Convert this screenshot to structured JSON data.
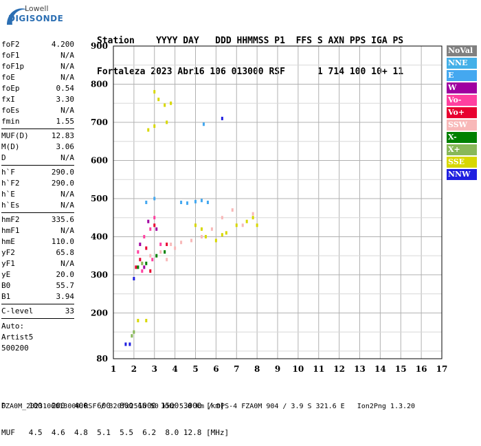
{
  "logo": {
    "top": "Lowell",
    "bottom": "DIGISONDE"
  },
  "header": {
    "line1": "Station    YYYY DAY   DDD HHMMSS P1  FFS S AXN PPS IGA PS",
    "line2": "Fortaleza 2023 Abr16 106 013000 RSF      1 714 100 10+ 11"
  },
  "params": {
    "group1": [
      {
        "k": "foF2",
        "v": "4.200"
      },
      {
        "k": "foF1",
        "v": "N/A"
      },
      {
        "k": "foF1p",
        "v": "N/A"
      },
      {
        "k": "foE",
        "v": "N/A"
      },
      {
        "k": "foEp",
        "v": "0.54"
      },
      {
        "k": "fxI",
        "v": "3.30"
      },
      {
        "k": "foEs",
        "v": "N/A"
      },
      {
        "k": "fmin",
        "v": "1.55"
      }
    ],
    "group2": [
      {
        "k": "MUF(D)",
        "v": "12.83"
      },
      {
        "k": "M(D)",
        "v": "3.06"
      },
      {
        "k": "D",
        "v": "N/A"
      }
    ],
    "group3": [
      {
        "k": "h`F",
        "v": "290.0"
      },
      {
        "k": "h`F2",
        "v": "290.0"
      },
      {
        "k": "h`E",
        "v": "N/A"
      },
      {
        "k": "h`Es",
        "v": "N/A"
      }
    ],
    "group4": [
      {
        "k": "hmF2",
        "v": "335.6"
      },
      {
        "k": "hmF1",
        "v": "N/A"
      },
      {
        "k": "hmE",
        "v": "110.0"
      },
      {
        "k": "yF2",
        "v": "65.8"
      },
      {
        "k": "yF1",
        "v": "N/A"
      },
      {
        "k": "yE",
        "v": "20.0"
      },
      {
        "k": "B0",
        "v": "55.7"
      },
      {
        "k": "B1",
        "v": "3.94"
      }
    ],
    "group5": [
      {
        "k": "C-level",
        "v": "33"
      }
    ],
    "auto": [
      "Auto:",
      "Artist5",
      "500200"
    ]
  },
  "legend": [
    {
      "label": "NoVal",
      "color": "#808080"
    },
    {
      "label": "NNE",
      "color": "#44b0e8"
    },
    {
      "label": "E",
      "color": "#44a8f0"
    },
    {
      "label": "W",
      "color": "#a000a0"
    },
    {
      "label": "Vo-",
      "color": "#ff40a0"
    },
    {
      "label": "Vo+",
      "color": "#e80030"
    },
    {
      "label": "SSW",
      "color": "#f8b8b8"
    },
    {
      "label": "X-",
      "color": "#008000"
    },
    {
      "label": "X+",
      "color": "#88b858"
    },
    {
      "label": "SSE",
      "color": "#d8d800"
    },
    {
      "label": "NNW",
      "color": "#2020e0"
    }
  ],
  "footer": {
    "line1": "D     100  200  400  600  800 1000 1500 3000 [km]",
    "line2": "MUF   4.5  4.6  4.8  5.1  5.5  6.2  8.0 12.8 [MHz]",
    "line3": "FZA0M_2023106013000.RSF / 320fx256h 50 kHz 5.0 km / DPS-4 FZA0M 904 / 3.9 S 321.6 E   Ion2Png 1.3.20"
  },
  "chart_data": {
    "type": "scatter",
    "title": "",
    "xlabel": "",
    "ylabel": "",
    "xlim": [
      1,
      17
    ],
    "ylim": [
      80,
      900
    ],
    "xticks": [
      1,
      2,
      3,
      4,
      5,
      6,
      7,
      8,
      9,
      10,
      11,
      12,
      13,
      14,
      15,
      16,
      17
    ],
    "yticks": [
      80,
      200,
      300,
      400,
      500,
      600,
      700,
      800,
      900
    ],
    "grid": true,
    "series": [
      {
        "name": "SSE",
        "color": "#d8d800",
        "points": [
          [
            3.0,
            780
          ],
          [
            3.2,
            760
          ],
          [
            3.5,
            745
          ],
          [
            3.8,
            750
          ],
          [
            2.7,
            680
          ],
          [
            3.0,
            690
          ],
          [
            3.6,
            700
          ],
          [
            5.0,
            430
          ],
          [
            5.5,
            400
          ],
          [
            6.0,
            390
          ],
          [
            6.5,
            410
          ],
          [
            7.0,
            430
          ],
          [
            7.5,
            440
          ],
          [
            8.0,
            430
          ],
          [
            5.3,
            420
          ],
          [
            6.3,
            405
          ],
          [
            7.8,
            450
          ],
          [
            2.2,
            180
          ],
          [
            2.6,
            180
          ]
        ]
      },
      {
        "name": "SSW",
        "color": "#f8b8b8",
        "points": [
          [
            2.4,
            330
          ],
          [
            2.8,
            350
          ],
          [
            3.3,
            360
          ],
          [
            3.8,
            380
          ],
          [
            4.3,
            385
          ],
          [
            4.8,
            390
          ],
          [
            5.3,
            400
          ],
          [
            5.8,
            420
          ],
          [
            6.3,
            450
          ],
          [
            6.8,
            470
          ],
          [
            7.3,
            430
          ],
          [
            7.8,
            460
          ],
          [
            3.6,
            340
          ],
          [
            4.0,
            370
          ]
        ]
      },
      {
        "name": "E",
        "color": "#44a8f0",
        "points": [
          [
            4.3,
            490
          ],
          [
            4.6,
            488
          ],
          [
            5.0,
            492
          ],
          [
            5.3,
            495
          ],
          [
            5.6,
            490
          ],
          [
            2.6,
            490
          ],
          [
            3.0,
            500
          ],
          [
            5.4,
            695
          ]
        ]
      },
      {
        "name": "Vo-",
        "color": "#ff40a0",
        "points": [
          [
            2.2,
            360
          ],
          [
            2.5,
            400
          ],
          [
            2.8,
            420
          ],
          [
            3.0,
            450
          ],
          [
            3.3,
            380
          ],
          [
            2.4,
            310
          ],
          [
            2.9,
            340
          ]
        ]
      },
      {
        "name": "Vo+",
        "color": "#e80030",
        "points": [
          [
            2.1,
            320
          ],
          [
            2.3,
            340
          ],
          [
            2.6,
            370
          ],
          [
            3.0,
            430
          ],
          [
            3.6,
            380
          ],
          [
            2.8,
            310
          ]
        ]
      },
      {
        "name": "W",
        "color": "#a000a0",
        "points": [
          [
            2.3,
            380
          ],
          [
            2.7,
            440
          ],
          [
            3.1,
            420
          ],
          [
            2.5,
            320
          ]
        ]
      },
      {
        "name": "X-",
        "color": "#008000",
        "points": [
          [
            2.2,
            320
          ],
          [
            2.6,
            330
          ],
          [
            3.1,
            350
          ],
          [
            3.5,
            360
          ]
        ]
      },
      {
        "name": "X+",
        "color": "#88b858",
        "points": [
          [
            1.9,
            140
          ],
          [
            2.0,
            150
          ],
          [
            2.4,
            330
          ]
        ]
      },
      {
        "name": "NNW",
        "color": "#2020e0",
        "points": [
          [
            1.6,
            118
          ],
          [
            1.8,
            118
          ],
          [
            6.3,
            710
          ],
          [
            2.0,
            290
          ]
        ]
      }
    ]
  }
}
